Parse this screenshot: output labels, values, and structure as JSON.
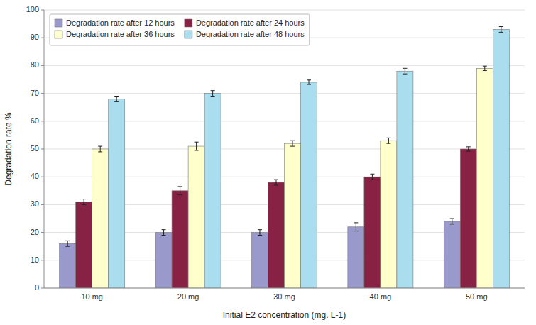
{
  "chart_data": {
    "type": "bar",
    "categories": [
      "10 mg",
      "20 mg",
      "30 mg",
      "40 mg",
      "50 mg"
    ],
    "series": [
      {
        "name": "Degradation rate after 12 hours",
        "color": "#9999cc",
        "values": [
          16,
          20,
          20,
          22,
          24
        ],
        "errors": [
          1.0,
          1.0,
          1.0,
          1.5,
          1.0
        ]
      },
      {
        "name": "Degradation rate after 24 hours",
        "color": "#882244",
        "values": [
          31,
          35,
          38,
          40,
          50
        ],
        "errors": [
          1.0,
          1.5,
          1.0,
          1.0,
          0.8
        ]
      },
      {
        "name": "Degradation rate after 36 hours",
        "color": "#ffffcc",
        "values": [
          50,
          51,
          52,
          53,
          79
        ],
        "errors": [
          1.0,
          1.5,
          1.0,
          1.0,
          0.8
        ]
      },
      {
        "name": "Degradation rate after 48 hours",
        "color": "#aaddee",
        "values": [
          68,
          70,
          74,
          78,
          93
        ],
        "errors": [
          1.0,
          1.0,
          0.8,
          1.0,
          1.0
        ]
      }
    ],
    "xlabel": "Initial E2 concentration (mg. L-1)",
    "ylabel": "Degradation rate %",
    "ylim": [
      0,
      100
    ],
    "yticks": [
      0,
      10,
      20,
      30,
      40,
      50,
      60,
      70,
      80,
      90,
      100
    ],
    "grid": true,
    "legend": "upper left"
  }
}
